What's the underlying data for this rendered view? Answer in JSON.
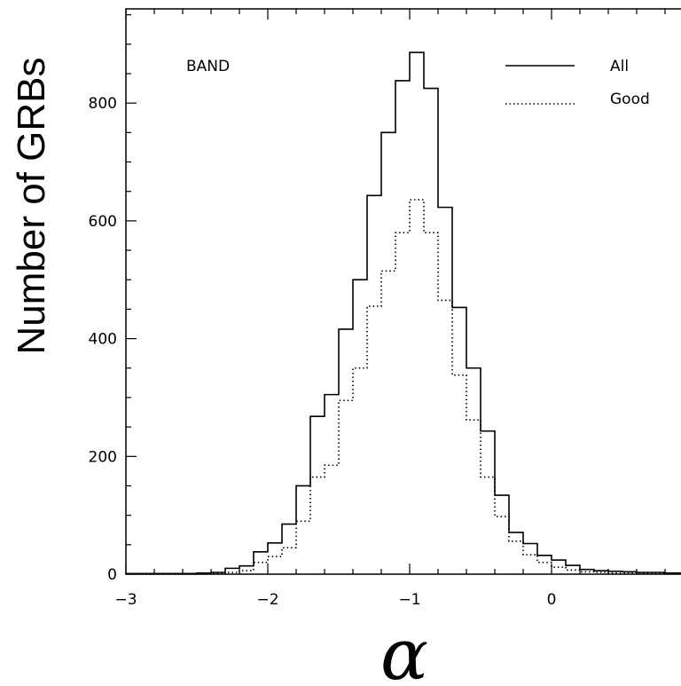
{
  "chart_data": {
    "type": "histogram",
    "title": "",
    "annotation": "BAND",
    "xlabel": "α",
    "ylabel": "Number of GRBs",
    "xlim": [
      -3,
      1
    ],
    "ylim": [
      0,
      960
    ],
    "bin_width": 0.1,
    "x_ticks": [
      -3,
      -2,
      -1,
      0
    ],
    "x_tick_labels": [
      "−3",
      "−2",
      "−1",
      "0"
    ],
    "y_ticks": [
      0,
      200,
      400,
      600,
      800
    ],
    "y_tick_labels": [
      "0",
      "200",
      "400",
      "600",
      "800"
    ],
    "legend": {
      "position": "top-right"
    },
    "series": [
      {
        "name": "All",
        "style": "solid",
        "bin_edges": [
          -3.0,
          -2.9,
          -2.8,
          -2.7,
          -2.6,
          -2.5,
          -2.4,
          -2.3,
          -2.2,
          -2.1,
          -2.0,
          -1.9,
          -1.8,
          -1.7,
          -1.6,
          -1.5,
          -1.4,
          -1.3,
          -1.2,
          -1.1,
          -1.0,
          -0.9,
          -0.8,
          -0.7,
          -0.6,
          -0.5,
          -0.4,
          -0.3,
          -0.2,
          -0.1,
          0.0,
          0.1,
          0.2,
          0.3,
          0.4,
          0.5,
          0.6,
          0.7,
          0.8,
          0.9,
          1.0
        ],
        "counts": [
          1,
          1,
          1,
          1,
          1,
          2,
          3,
          10,
          14,
          38,
          53,
          85,
          150,
          268,
          305,
          416,
          500,
          643,
          750,
          838,
          886,
          825,
          623,
          453,
          350,
          243,
          134,
          71,
          52,
          32,
          24,
          15,
          8,
          6,
          5,
          4,
          3,
          3,
          2,
          2
        ]
      },
      {
        "name": "Good",
        "style": "dotted",
        "bin_edges": [
          -3.0,
          -2.9,
          -2.8,
          -2.7,
          -2.6,
          -2.5,
          -2.4,
          -2.3,
          -2.2,
          -2.1,
          -2.0,
          -1.9,
          -1.8,
          -1.7,
          -1.6,
          -1.5,
          -1.4,
          -1.3,
          -1.2,
          -1.1,
          -1.0,
          -0.9,
          -0.8,
          -0.7,
          -0.6,
          -0.5,
          -0.4,
          -0.3,
          -0.2,
          -0.1,
          0.0,
          0.1,
          0.2,
          0.3,
          0.4,
          0.5,
          0.6,
          0.7,
          0.8,
          0.9,
          1.0
        ],
        "counts": [
          0,
          0,
          0,
          0,
          0,
          1,
          1,
          3,
          6,
          20,
          30,
          45,
          90,
          165,
          185,
          295,
          350,
          455,
          515,
          580,
          636,
          580,
          465,
          338,
          262,
          165,
          98,
          56,
          33,
          20,
          12,
          7,
          4,
          3,
          2,
          2,
          1,
          1,
          1,
          1
        ]
      }
    ]
  }
}
